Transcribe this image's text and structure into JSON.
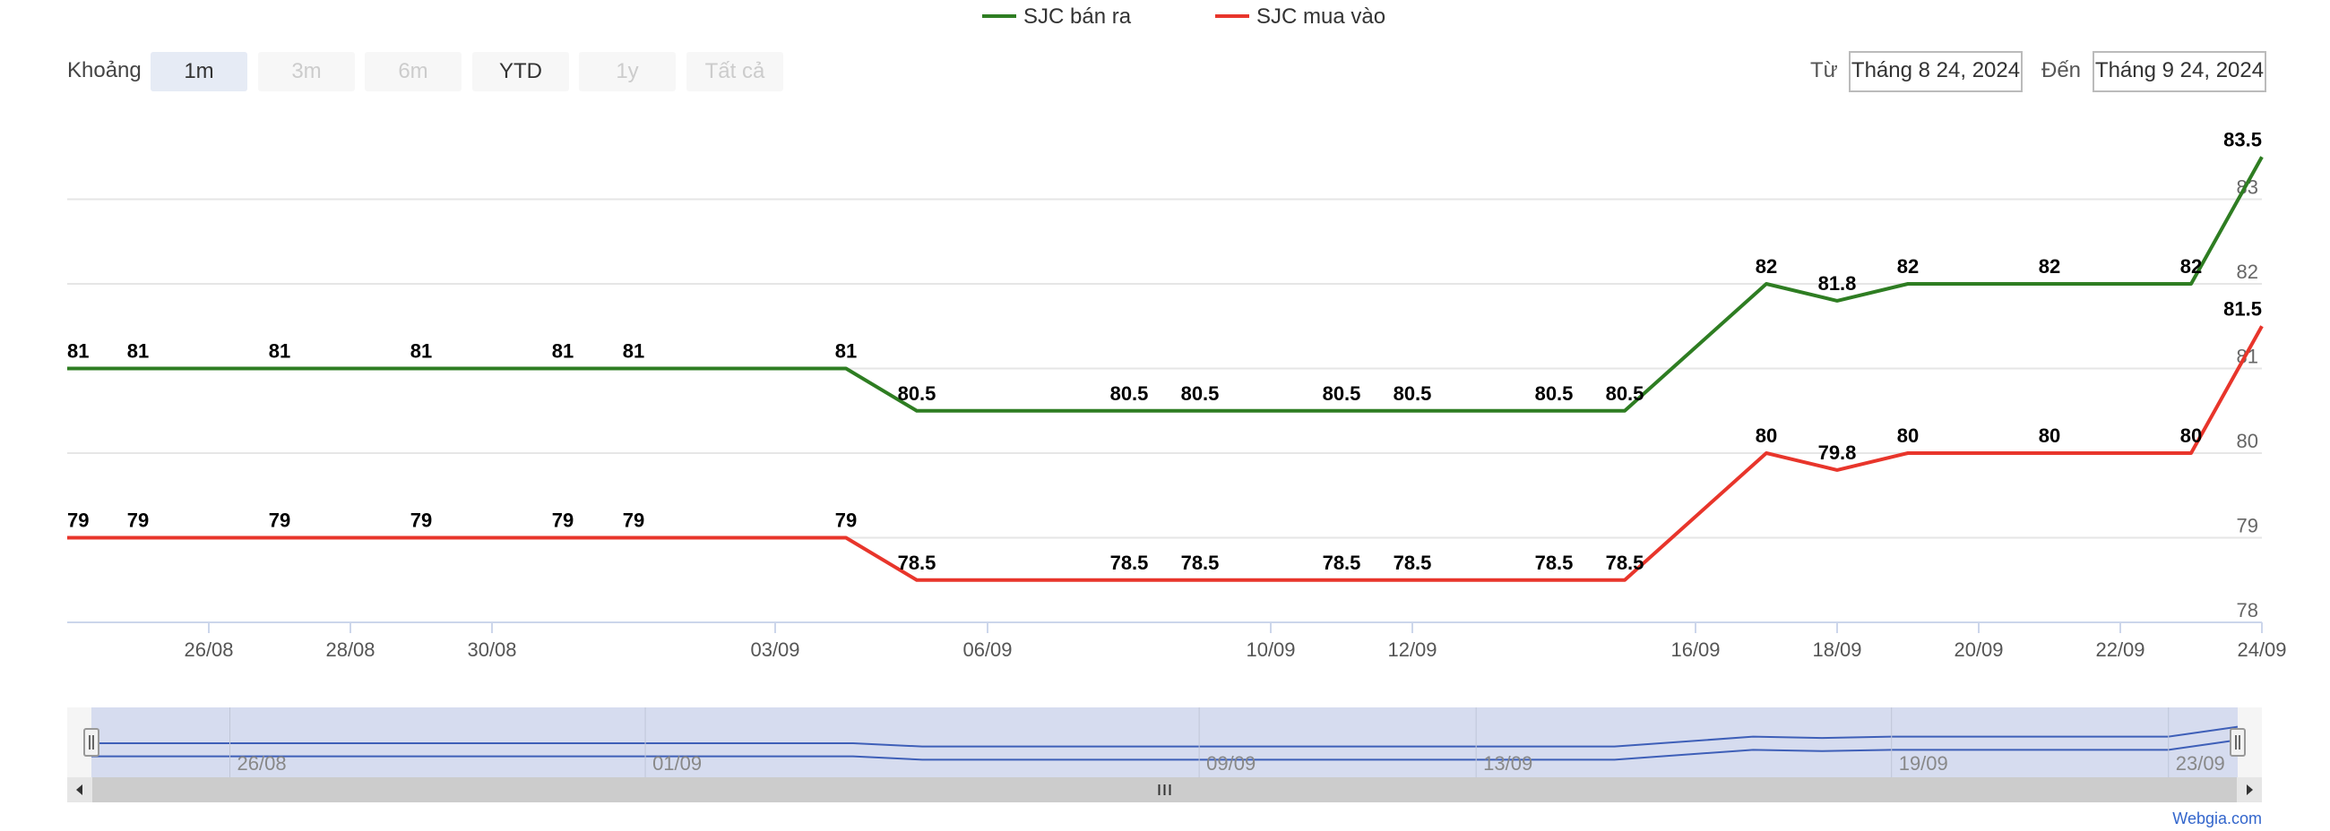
{
  "legend": [
    {
      "label": "SJC bán ra",
      "color": "#2e7d22"
    },
    {
      "label": "SJC mua vào",
      "color": "#e8352b"
    }
  ],
  "range_selector": {
    "label": "Khoảng",
    "buttons": [
      {
        "label": "1m",
        "state": "selected"
      },
      {
        "label": "3m",
        "state": "disabled"
      },
      {
        "label": "6m",
        "state": "disabled"
      },
      {
        "label": "YTD",
        "state": "normal"
      },
      {
        "label": "1y",
        "state": "disabled"
      },
      {
        "label": "Tất cả",
        "state": "disabled"
      }
    ],
    "from_label": "Từ",
    "from_value": "Tháng 8 24, 2024",
    "to_label": "Đến",
    "to_value": "Tháng 9 24, 2024"
  },
  "chart_data": {
    "type": "line",
    "title": "",
    "xlabel": "",
    "ylabel": "",
    "x": [
      "25/08",
      "26/08",
      "27/08",
      "28/08",
      "29/08",
      "30/08",
      "31/08",
      "01/09",
      "02/09",
      "03/09",
      "04/09",
      "05/09",
      "06/09",
      "07/09",
      "08/09",
      "09/09",
      "10/09",
      "11/09",
      "12/09",
      "13/09",
      "14/09",
      "15/09",
      "16/09",
      "17/09",
      "18/09",
      "19/09",
      "20/09",
      "21/09",
      "22/09",
      "23/09",
      "24/09"
    ],
    "series": [
      {
        "name": "SJC bán ra",
        "color": "#2e7d22",
        "points": [
          {
            "x": "24/08",
            "y": 81
          },
          {
            "x": "25/08",
            "y": 81
          },
          {
            "x": "27/08",
            "y": 81
          },
          {
            "x": "29/08",
            "y": 81
          },
          {
            "x": "31/08",
            "y": 81
          },
          {
            "x": "01/09",
            "y": 81
          },
          {
            "x": "04/09",
            "y": 81
          },
          {
            "x": "05/09",
            "y": 80.5
          },
          {
            "x": "08/09",
            "y": 80.5
          },
          {
            "x": "09/09",
            "y": 80.5
          },
          {
            "x": "11/09",
            "y": 80.5
          },
          {
            "x": "12/09",
            "y": 80.5
          },
          {
            "x": "14/09",
            "y": 80.5
          },
          {
            "x": "15/09",
            "y": 80.5
          },
          {
            "x": "17/09",
            "y": 82
          },
          {
            "x": "18/09",
            "y": 81.8
          },
          {
            "x": "19/09",
            "y": 82
          },
          {
            "x": "21/09",
            "y": 82
          },
          {
            "x": "23/09",
            "y": 82
          },
          {
            "x": "24/09",
            "y": 83.5
          }
        ]
      },
      {
        "name": "SJC mua vào",
        "color": "#e8352b",
        "points": [
          {
            "x": "24/08",
            "y": 79
          },
          {
            "x": "25/08",
            "y": 79
          },
          {
            "x": "27/08",
            "y": 79
          },
          {
            "x": "29/08",
            "y": 79
          },
          {
            "x": "31/08",
            "y": 79
          },
          {
            "x": "01/09",
            "y": 79
          },
          {
            "x": "04/09",
            "y": 79
          },
          {
            "x": "05/09",
            "y": 78.5
          },
          {
            "x": "08/09",
            "y": 78.5
          },
          {
            "x": "09/09",
            "y": 78.5
          },
          {
            "x": "11/09",
            "y": 78.5
          },
          {
            "x": "12/09",
            "y": 78.5
          },
          {
            "x": "14/09",
            "y": 78.5
          },
          {
            "x": "15/09",
            "y": 78.5
          },
          {
            "x": "17/09",
            "y": 80
          },
          {
            "x": "18/09",
            "y": 79.8
          },
          {
            "x": "19/09",
            "y": 80
          },
          {
            "x": "21/09",
            "y": 80
          },
          {
            "x": "23/09",
            "y": 80
          },
          {
            "x": "24/09",
            "y": 81.5
          }
        ]
      }
    ],
    "xticks": [
      "26/08",
      "28/08",
      "30/08",
      "03/09",
      "06/09",
      "10/09",
      "12/09",
      "16/09",
      "18/09",
      "20/09",
      "22/09",
      "24/09"
    ],
    "yticks": [
      78,
      79,
      80,
      81,
      82,
      83
    ],
    "ylim": [
      78,
      84
    ],
    "grid": true,
    "legend_position": "top-center"
  },
  "navigator": {
    "ticks": [
      "26/08",
      "01/09",
      "09/09",
      "13/09",
      "19/09",
      "23/09"
    ]
  },
  "credit": "Webgia.com",
  "colors": {
    "grid": "#e6e6e6",
    "navigator_mask": "#d6dcef",
    "navigator_line": "#3e5fb8",
    "scrollbar": "#cccccc"
  }
}
